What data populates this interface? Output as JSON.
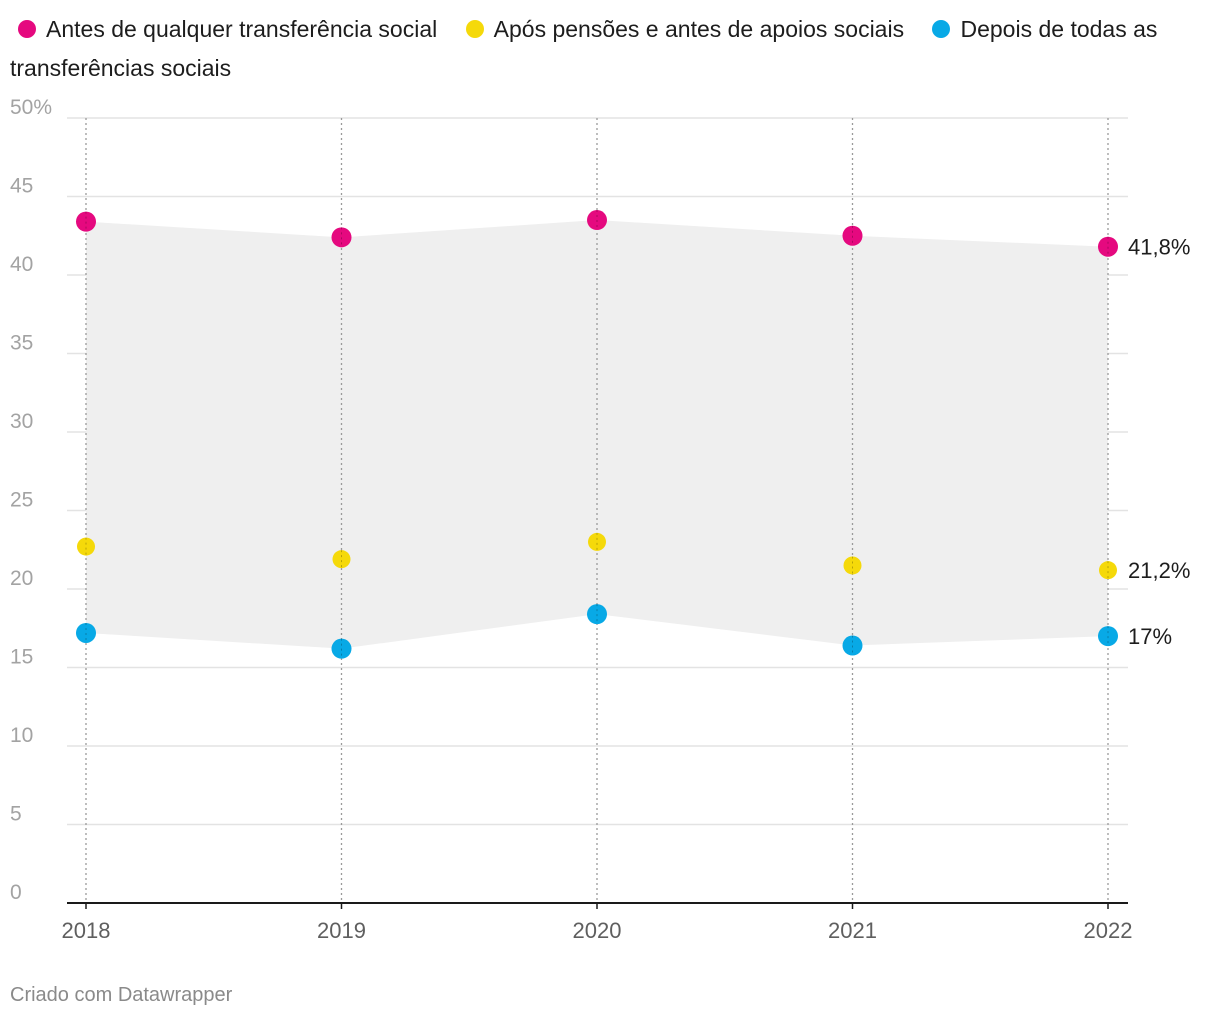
{
  "chart_data": {
    "type": "scatter",
    "categories": [
      "2018",
      "2019",
      "2020",
      "2021",
      "2022"
    ],
    "series": [
      {
        "name": "Antes de qualquer transferência social",
        "color": "#e5097f",
        "values": [
          43.4,
          42.4,
          43.5,
          42.5,
          41.8
        ]
      },
      {
        "name": "Após pensões e antes de apoios sociais",
        "color": "#f5d90a",
        "values": [
          22.7,
          21.9,
          23.0,
          21.5,
          21.2
        ]
      },
      {
        "name": "Depois de todas as transferências sociais",
        "color": "#08a9e6",
        "values": [
          17.2,
          16.2,
          18.4,
          16.4,
          17.0
        ]
      }
    ],
    "end_labels": [
      "41,8%",
      "21,2%",
      "17%"
    ],
    "yticks": [
      0,
      5,
      10,
      15,
      20,
      25,
      30,
      35,
      40,
      45,
      50
    ],
    "ytick_labels": [
      "0",
      "5",
      "10",
      "15",
      "20",
      "25",
      "30",
      "35",
      "40",
      "45",
      "50%"
    ],
    "ylim": [
      0,
      50
    ],
    "range_fill": "#efefef",
    "grid": true,
    "legend": "top"
  },
  "footer": "Criado com Datawrapper"
}
